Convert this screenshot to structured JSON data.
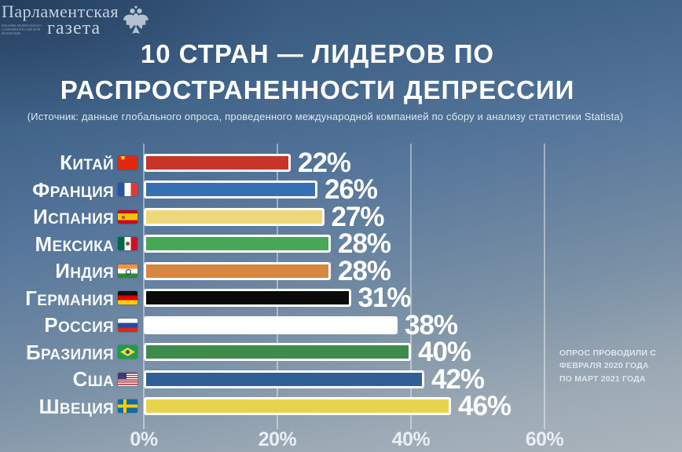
{
  "logo": {
    "line1": "Парламентская",
    "line2": "газета",
    "tagline": "Издание Федерального Собрания Российской Федерации"
  },
  "header": {
    "title_line1": "10 СТРАН — ЛИДЕРОВ ПО",
    "title_line2": "РАСПРОСТРАНЕННОСТИ ДЕПРЕССИИ",
    "subtitle": "(Источник: данные глобального опроса, проведенного международной компанией по сбору и анализу статистики Statista)"
  },
  "note": "Опрос проводили с февраля 2020 года по март 2021 года",
  "chart_data": {
    "type": "bar",
    "orientation": "horizontal",
    "title": "10 стран — лидеров по распространенности депрессии",
    "xlabel": "",
    "ylabel": "",
    "xlim": [
      0,
      60
    ],
    "x_ticks": [
      "0%",
      "20%",
      "40%",
      "60%"
    ],
    "grid": true,
    "unit": "%",
    "categories": [
      "Китай",
      "Франция",
      "Испания",
      "Мексика",
      "Индия",
      "Германия",
      "Россия",
      "Бразилия",
      "США",
      "Швеция"
    ],
    "values": [
      22,
      26,
      27,
      28,
      28,
      31,
      38,
      40,
      42,
      46
    ],
    "rows": [
      {
        "country": "Китай",
        "value": 22,
        "label": "22%",
        "flag": "china",
        "color": "#c63527"
      },
      {
        "country": "Франция",
        "value": 26,
        "label": "26%",
        "flag": "france",
        "color": "#3470b2"
      },
      {
        "country": "Испания",
        "value": 27,
        "label": "27%",
        "flag": "spain",
        "color": "#eed87c"
      },
      {
        "country": "Мексика",
        "value": 28,
        "label": "28%",
        "flag": "mexico",
        "color": "#47a857"
      },
      {
        "country": "Индия",
        "value": 28,
        "label": "28%",
        "flag": "india",
        "color": "#d8873f"
      },
      {
        "country": "Германия",
        "value": 31,
        "label": "31%",
        "flag": "germany",
        "color": "#0a0a0a"
      },
      {
        "country": "Россия",
        "value": 38,
        "label": "38%",
        "flag": "russia",
        "color": "#ffffff"
      },
      {
        "country": "Бразилия",
        "value": 40,
        "label": "40%",
        "flag": "brazil",
        "color": "#3e8c4b"
      },
      {
        "country": "США",
        "value": 42,
        "label": "42%",
        "flag": "usa",
        "color": "#2f5f94"
      },
      {
        "country": "Швеция",
        "value": 46,
        "label": "46%",
        "flag": "sweden",
        "color": "#e8d34f"
      }
    ]
  }
}
